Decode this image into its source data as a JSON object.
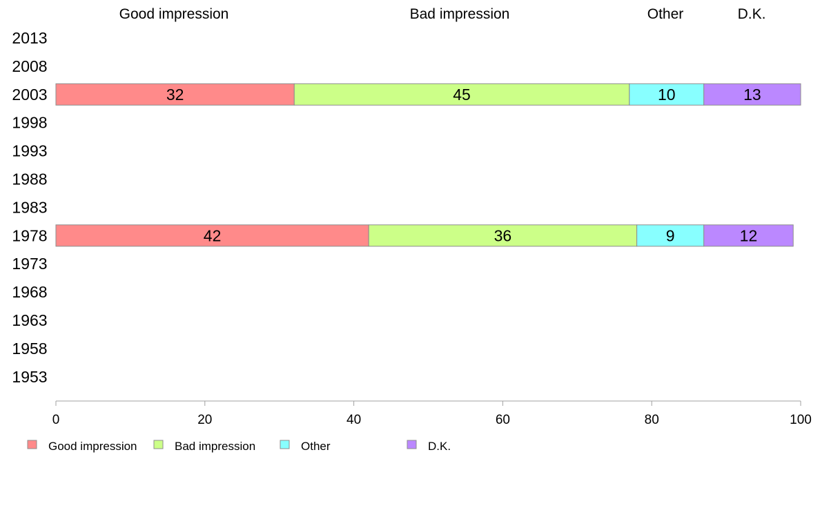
{
  "chart_data": {
    "type": "bar",
    "orientation": "horizontal",
    "stacked": true,
    "categories": [
      "2013",
      "2008",
      "2003",
      "1998",
      "1993",
      "1988",
      "1983",
      "1978",
      "1973",
      "1968",
      "1963",
      "1958",
      "1953"
    ],
    "series": [
      {
        "name": "Good impression",
        "color": "#ff8a8a",
        "values": [
          null,
          null,
          32,
          null,
          null,
          null,
          null,
          42,
          null,
          null,
          null,
          null,
          null
        ]
      },
      {
        "name": "Bad impression",
        "color": "#ccff88",
        "values": [
          null,
          null,
          45,
          null,
          null,
          null,
          null,
          36,
          null,
          null,
          null,
          null,
          null
        ]
      },
      {
        "name": "Other",
        "color": "#88ffff",
        "values": [
          null,
          null,
          10,
          null,
          null,
          null,
          null,
          9,
          null,
          null,
          null,
          null,
          null
        ]
      },
      {
        "name": "D.K.",
        "color": "#bb88ff",
        "values": [
          null,
          null,
          13,
          null,
          null,
          null,
          null,
          12,
          null,
          null,
          null,
          null,
          null
        ]
      }
    ],
    "column_headers": [
      "Good impression",
      "Bad impression",
      "Other",
      "D.K."
    ],
    "xlim": [
      0,
      100
    ],
    "xticks": [
      0,
      20,
      40,
      60,
      80,
      100
    ],
    "grid": false,
    "legend_position": "bottom-left"
  }
}
